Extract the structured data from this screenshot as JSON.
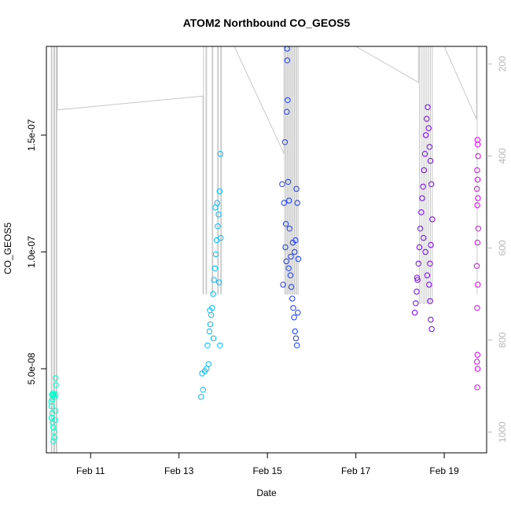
{
  "chart_data": {
    "type": "scatter",
    "title": "ATOM2 Northbound CO_GEOS5",
    "xlabel": "Date",
    "ylabel": "CO_GEOS5",
    "x_ticks": [
      "Feb 11",
      "Feb 13",
      "Feb 15",
      "Feb 17",
      "Feb 19"
    ],
    "y_ticks": [
      "5.0e-08",
      "1.0e-07",
      "1.5e-07"
    ],
    "y_tick_values": [
      5e-08,
      1e-07,
      1.5e-07
    ],
    "y_right_ticks": [
      "200",
      "400",
      "600",
      "800",
      "1000"
    ],
    "y_right_tick_values": [
      200,
      400,
      600,
      800,
      1000
    ],
    "xlim": [
      "Feb 10 00:00",
      "Feb 19 23:00"
    ],
    "ylim": [
      1.4e-08,
      1.88e-07
    ],
    "y_right_lim": [
      1045,
      162
    ],
    "y_right_reversed": true,
    "series": [
      {
        "color": "#00ffcc",
        "points": [
          [
            "Feb 10 03:00",
            3.9e-08
          ],
          [
            "Feb 10 03:30",
            3.85e-08
          ],
          [
            "Feb 10 04:00",
            3.9e-08
          ],
          [
            "Feb 10 04:30",
            3.8e-08
          ],
          [
            "Feb 10 05:00",
            3.9e-08
          ],
          [
            "Feb 10 03:15",
            3.7e-08
          ],
          [
            "Feb 10 02:45",
            3.4e-08
          ],
          [
            "Feb 10 03:10",
            3.1e-08
          ],
          [
            "Feb 10 02:50",
            2.9e-08
          ],
          [
            "Feb 10 03:20",
            2.7e-08
          ],
          [
            "Feb 10 03:40",
            2.5e-08
          ],
          [
            "Feb 10 04:10",
            2.3e-08
          ],
          [
            "Feb 10 04:20",
            2.05e-08
          ],
          [
            "Feb 10 03:50",
            1.9e-08
          ],
          [
            "Feb 10 04:40",
            2.8e-08
          ],
          [
            "Feb 10 05:10",
            4.3e-08
          ],
          [
            "Feb 10 05:00",
            4.6e-08
          ],
          [
            "Feb 10 04:50",
            3.2e-08
          ],
          [
            "Feb 10 03:35",
            3.95e-08
          ],
          [
            "Feb 10 02:40",
            3.6e-08
          ]
        ]
      },
      {
        "color": "#00bfff",
        "points": [
          [
            "Feb 13 12:00",
            3.8e-08
          ],
          [
            "Feb 13 13:00",
            4.1e-08
          ],
          [
            "Feb 13 12:30",
            4.8e-08
          ],
          [
            "Feb 13 14:00",
            4.9e-08
          ],
          [
            "Feb 13 15:00",
            5e-08
          ],
          [
            "Feb 13 16:00",
            5.2e-08
          ],
          [
            "Feb 13 15:30",
            6e-08
          ],
          [
            "Feb 13 16:30",
            6.6e-08
          ],
          [
            "Feb 13 17:00",
            6.9e-08
          ],
          [
            "Feb 13 17:30",
            7.3e-08
          ],
          [
            "Feb 13 18:00",
            7.6e-08
          ],
          [
            "Feb 13 18:30",
            8.2e-08
          ],
          [
            "Feb 13 19:00",
            8.8e-08
          ],
          [
            "Feb 13 19:30",
            9.3e-08
          ],
          [
            "Feb 13 20:00",
            9.9e-08
          ],
          [
            "Feb 13 20:30",
            1.05e-07
          ],
          [
            "Feb 13 21:00",
            1.11e-07
          ],
          [
            "Feb 13 21:30",
            1.16e-07
          ],
          [
            "Feb 13 22:00",
            1.26e-07
          ],
          [
            "Feb 13 22:30",
            1.42e-07
          ],
          [
            "Feb 13 21:45",
            8.7e-08
          ],
          [
            "Feb 13 22:15",
            6e-08
          ],
          [
            "Feb 13 19:45",
            1.19e-07
          ],
          [
            "Feb 13 20:45",
            1.21e-07
          ],
          [
            "Feb 13 22:40",
            1.06e-07
          ],
          [
            "Feb 13 16:45",
            7.5e-08
          ],
          [
            "Feb 13 18:45",
            6.3e-08
          ]
        ]
      },
      {
        "color": "#1a3cff",
        "points": [
          [
            "Feb 15 08:00",
            1.29e-07
          ],
          [
            "Feb 15 09:00",
            1.21e-07
          ],
          [
            "Feb 15 10:00",
            1.12e-07
          ],
          [
            "Feb 15 10:30",
            1.6e-07
          ],
          [
            "Feb 15 11:00",
            1.65e-07
          ],
          [
            "Feb 15 09:30",
            1.47e-07
          ],
          [
            "Feb 15 10:45",
            1.82e-07
          ],
          [
            "Feb 15 11:15",
            1.3e-07
          ],
          [
            "Feb 15 12:00",
            1.1e-07
          ],
          [
            "Feb 15 09:45",
            1.02e-07
          ],
          [
            "Feb 15 10:15",
            9.6e-08
          ],
          [
            "Feb 15 11:30",
            9.3e-08
          ],
          [
            "Feb 15 12:30",
            9e-08
          ],
          [
            "Feb 15 13:00",
            8.5e-08
          ],
          [
            "Feb 15 13:30",
            8e-08
          ],
          [
            "Feb 15 14:00",
            7.6e-08
          ],
          [
            "Feb 15 14:30",
            7.2e-08
          ],
          [
            "Feb 15 15:00",
            6.6e-08
          ],
          [
            "Feb 15 15:30",
            6.3e-08
          ],
          [
            "Feb 15 16:00",
            6e-08
          ],
          [
            "Feb 15 16:30",
            7.4e-08
          ],
          [
            "Feb 15 15:45",
            1.27e-07
          ],
          [
            "Feb 15 16:15",
            1.21e-07
          ],
          [
            "Feb 15 14:45",
            1e-07
          ],
          [
            "Feb 15 13:45",
            1.04e-07
          ],
          [
            "Feb 15 12:45",
            9.8e-08
          ],
          [
            "Feb 15 11:45",
            1.22e-07
          ],
          [
            "Feb 15 08:30",
            8.6e-08
          ],
          [
            "Feb 15 16:45",
            9.7e-08
          ],
          [
            "Feb 15 15:15",
            1.05e-07
          ],
          [
            "Feb 15 10:40",
            1.87e-07
          ]
        ]
      },
      {
        "color": "#7a00ff",
        "points": [
          [
            "Feb 18 08:00",
            7.4e-08
          ],
          [
            "Feb 18 08:30",
            7.8e-08
          ],
          [
            "Feb 18 09:00",
            8.3e-08
          ],
          [
            "Feb 18 09:30",
            8.8e-08
          ],
          [
            "Feb 18 10:00",
            9.5e-08
          ],
          [
            "Feb 18 10:30",
            1.02e-07
          ],
          [
            "Feb 18 11:00",
            1.1e-07
          ],
          [
            "Feb 18 11:30",
            1.17e-07
          ],
          [
            "Feb 18 12:00",
            1.23e-07
          ],
          [
            "Feb 18 12:30",
            1.28e-07
          ],
          [
            "Feb 18 13:00",
            1.35e-07
          ],
          [
            "Feb 18 13:30",
            1.42e-07
          ],
          [
            "Feb 18 14:00",
            1.5e-07
          ],
          [
            "Feb 18 14:30",
            1.57e-07
          ],
          [
            "Feb 18 15:00",
            1.62e-07
          ],
          [
            "Feb 18 15:30",
            1.53e-07
          ],
          [
            "Feb 18 16:00",
            1.45e-07
          ],
          [
            "Feb 18 16:30",
            1.39e-07
          ],
          [
            "Feb 18 17:00",
            1.29e-07
          ],
          [
            "Feb 18 17:30",
            1.14e-07
          ],
          [
            "Feb 18 16:45",
            1.03e-07
          ],
          [
            "Feb 18 16:15",
            9.5e-08
          ],
          [
            "Feb 18 15:45",
            8.6e-08
          ],
          [
            "Feb 18 16:20",
            7.9e-08
          ],
          [
            "Feb 18 16:40",
            7.1e-08
          ],
          [
            "Feb 18 17:10",
            6.7e-08
          ],
          [
            "Feb 18 14:45",
            9e-08
          ],
          [
            "Feb 18 13:45",
            1e-07
          ],
          [
            "Feb 18 12:45",
            1.06e-07
          ],
          [
            "Feb 18 09:15",
            8.9e-08
          ]
        ]
      },
      {
        "color": "#e600ff",
        "points": [
          [
            "Feb 19 18:00",
            1.48e-07
          ],
          [
            "Feb 19 18:10",
            1.46e-07
          ],
          [
            "Feb 19 18:20",
            1.41e-07
          ],
          [
            "Feb 19 17:50",
            1.35e-07
          ],
          [
            "Feb 19 18:05",
            1.31e-07
          ],
          [
            "Feb 19 17:45",
            1.27e-07
          ],
          [
            "Feb 19 18:15",
            1.23e-07
          ],
          [
            "Feb 19 17:55",
            1.2e-07
          ],
          [
            "Feb 19 18:25",
            1.1e-07
          ],
          [
            "Feb 19 18:00",
            1.04e-07
          ],
          [
            "Feb 19 17:40",
            9.4e-08
          ],
          [
            "Feb 19 18:10",
            8.6e-08
          ],
          [
            "Feb 19 17:50",
            7.6e-08
          ],
          [
            "Feb 19 18:00",
            5.6e-08
          ],
          [
            "Feb 19 17:45",
            5.3e-08
          ],
          [
            "Feb 19 18:05",
            5e-08
          ],
          [
            "Feb 19 17:55",
            4.2e-08
          ]
        ]
      }
    ],
    "profile_line": {
      "color": "#c8c8c8",
      "points": [
        [
          "Feb 10 02:40",
          80
        ],
        [
          "Feb 10 02:40",
          1115
        ],
        [
          "Feb 10 03:00",
          1115
        ],
        [
          "Feb 10 03:00",
          80
        ],
        [
          "Feb 10 04:00",
          80
        ],
        [
          "Feb 10 04:00",
          1115
        ],
        [
          "Feb 10 04:30",
          1115
        ],
        [
          "Feb 10 04:30",
          80
        ],
        [
          "Feb 10 05:20",
          80
        ],
        [
          "Feb 10 05:20",
          1115
        ],
        [
          "Feb 10 05:40",
          1115
        ],
        [
          "Feb 10 05:40",
          80
        ],
        [
          "Feb 10 06:00",
          80
        ],
        [
          "Feb 10 06:00",
          300
        ],
        [
          "Feb 13 13:00",
          270
        ],
        [
          "Feb 13 13:00",
          700
        ],
        [
          "Feb 13 13:20",
          700
        ],
        [
          "Feb 13 13:20",
          80
        ],
        [
          "Feb 13 14:40",
          80
        ],
        [
          "Feb 13 14:40",
          700
        ],
        [
          "Feb 13 15:00",
          700
        ],
        [
          "Feb 13 15:00",
          80
        ],
        [
          "Feb 13 18:00",
          80
        ],
        [
          "Feb 13 18:00",
          700
        ],
        [
          "Feb 13 18:20",
          700
        ],
        [
          "Feb 13 18:20",
          80
        ],
        [
          "Feb 13 21:00",
          80
        ],
        [
          "Feb 13 21:00",
          700
        ],
        [
          "Feb 13 21:20",
          700
        ],
        [
          "Feb 13 21:20",
          80
        ],
        [
          "Feb 13 22:40",
          80
        ],
        [
          "Feb 13 22:40",
          700
        ],
        [
          "Feb 13 23:00",
          700
        ],
        [
          "Feb 13 23:00",
          80
        ],
        [
          "Feb 14 06:00",
          80
        ],
        [
          "Feb 15 09:00",
          395
        ],
        [
          "Feb 15 09:00",
          80
        ],
        [
          "Feb 15 09:20",
          80
        ],
        [
          "Feb 15 09:20",
          700
        ],
        [
          "Feb 15 10:00",
          700
        ],
        [
          "Feb 15 10:00",
          80
        ],
        [
          "Feb 15 10:40",
          80
        ],
        [
          "Feb 15 10:40",
          700
        ],
        [
          "Feb 15 11:20",
          700
        ],
        [
          "Feb 15 11:20",
          80
        ],
        [
          "Feb 15 12:00",
          80
        ],
        [
          "Feb 15 12:00",
          700
        ],
        [
          "Feb 15 12:40",
          700
        ],
        [
          "Feb 15 12:40",
          80
        ],
        [
          "Feb 15 13:20",
          80
        ],
        [
          "Feb 15 13:20",
          700
        ],
        [
          "Feb 15 14:00",
          700
        ],
        [
          "Feb 15 14:00",
          80
        ],
        [
          "Feb 15 14:40",
          80
        ],
        [
          "Feb 15 14:40",
          700
        ],
        [
          "Feb 15 15:20",
          700
        ],
        [
          "Feb 15 15:20",
          80
        ],
        [
          "Feb 15 16:00",
          80
        ],
        [
          "Feb 15 16:00",
          700
        ],
        [
          "Feb 15 16:40",
          700
        ],
        [
          "Feb 15 16:40",
          80
        ],
        [
          "Feb 17 00:00",
          80
        ],
        [
          "Feb 18 10:00",
          240
        ],
        [
          "Feb 18 10:00",
          80
        ],
        [
          "Feb 18 10:30",
          80
        ],
        [
          "Feb 18 10:30",
          720
        ],
        [
          "Feb 18 11:30",
          720
        ],
        [
          "Feb 18 11:30",
          80
        ],
        [
          "Feb 18 12:30",
          80
        ],
        [
          "Feb 18 12:30",
          720
        ],
        [
          "Feb 18 13:30",
          720
        ],
        [
          "Feb 18 13:30",
          80
        ],
        [
          "Feb 18 14:30",
          80
        ],
        [
          "Feb 18 14:30",
          720
        ],
        [
          "Feb 18 15:30",
          720
        ],
        [
          "Feb 18 15:30",
          80
        ],
        [
          "Feb 18 16:30",
          80
        ],
        [
          "Feb 18 16:30",
          720
        ],
        [
          "Feb 18 17:30",
          720
        ],
        [
          "Feb 18 17:30",
          80
        ],
        [
          "Feb 19 00:00",
          80
        ],
        [
          "Feb 19 17:30",
          320
        ],
        [
          "Feb 19 17:30",
          80
        ],
        [
          "Feb 19 17:50",
          80
        ],
        [
          "Feb 19 17:50",
          700
        ]
      ]
    },
    "grid": false,
    "legend": "none"
  }
}
